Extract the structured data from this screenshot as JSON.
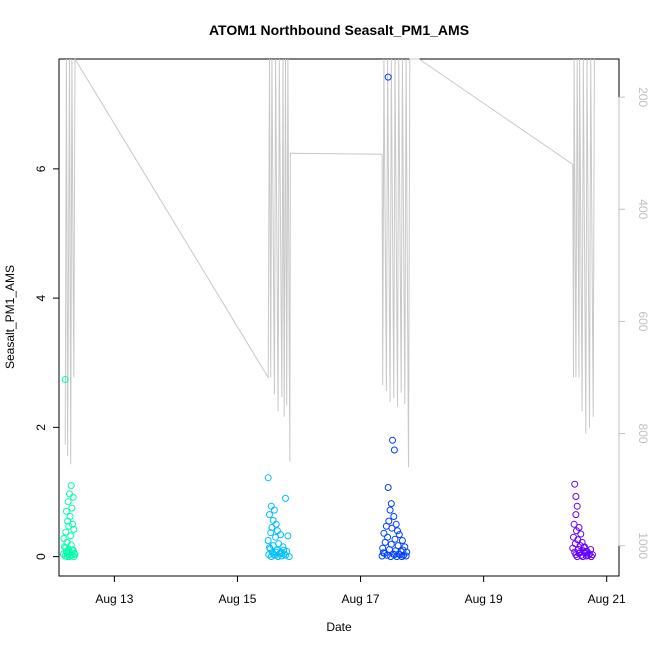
{
  "chart_data": {
    "type": "scatter",
    "title": "ATOM1 Northbound Seasalt_PM1_AMS",
    "xlabel": "Date",
    "ylabel": "Seasalt_PM1_AMS",
    "x_unit": "day of August 2016",
    "xlim": [
      12.1,
      21.2
    ],
    "ylim": [
      -0.3,
      7.7
    ],
    "x_ticks": [
      13,
      15,
      17,
      19,
      21
    ],
    "x_tick_labels": [
      "Aug 13",
      "Aug 15",
      "Aug 17",
      "Aug 19",
      "Aug 21"
    ],
    "y_ticks": [
      0,
      2,
      4,
      6
    ],
    "y_tick_labels": [
      "0",
      "2",
      "4",
      "6"
    ],
    "right_axis": {
      "label": "",
      "color": "#c0c0c0",
      "inverted": true,
      "ticks": [
        200,
        400,
        600,
        800,
        1000
      ],
      "tick_labels": [
        "200",
        "400",
        "600",
        "800",
        "1000"
      ],
      "lim": [
        1054,
        132
      ]
    },
    "color_scale": [
      "#00ffaa",
      "#00bfff",
      "#0040ff",
      "#6600ff"
    ],
    "series": [
      {
        "values": [
          [
            12.2,
            2.74
          ],
          [
            12.3,
            1.1
          ],
          [
            12.27,
            0.97
          ],
          [
            12.33,
            0.92
          ],
          [
            12.25,
            0.85
          ],
          [
            12.31,
            0.75
          ],
          [
            12.22,
            0.7
          ],
          [
            12.28,
            0.62
          ],
          [
            12.24,
            0.55
          ],
          [
            12.32,
            0.5
          ],
          [
            12.26,
            0.47
          ],
          [
            12.34,
            0.42
          ],
          [
            12.21,
            0.38
          ],
          [
            12.29,
            0.32
          ],
          [
            12.18,
            0.28
          ],
          [
            12.23,
            0.22
          ],
          [
            12.3,
            0.18
          ],
          [
            12.19,
            0.15
          ],
          [
            12.26,
            0.12
          ],
          [
            12.33,
            0.1
          ],
          [
            12.22,
            0.08
          ],
          [
            12.28,
            0.06
          ],
          [
            12.35,
            0.05
          ],
          [
            12.17,
            0.04
          ],
          [
            12.24,
            0.03
          ],
          [
            12.31,
            0.02
          ],
          [
            12.2,
            0.01
          ],
          [
            12.27,
            0.0
          ],
          [
            12.34,
            0.0
          ],
          [
            12.23,
            0.0
          ],
          [
            12.29,
            0.02
          ],
          [
            12.36,
            0.03
          ],
          [
            12.25,
            0.07
          ],
          [
            12.32,
            0.1
          ],
          [
            12.21,
            0.14
          ]
        ]
      },
      {
        "values": [
          [
            15.5,
            1.22
          ],
          [
            15.78,
            0.9
          ],
          [
            15.55,
            0.78
          ],
          [
            15.6,
            0.72
          ],
          [
            15.52,
            0.65
          ],
          [
            15.58,
            0.56
          ],
          [
            15.63,
            0.5
          ],
          [
            15.56,
            0.45
          ],
          [
            15.65,
            0.4
          ],
          [
            15.54,
            0.37
          ],
          [
            15.7,
            0.34
          ],
          [
            15.62,
            0.3
          ],
          [
            15.82,
            0.32
          ],
          [
            15.5,
            0.25
          ],
          [
            15.67,
            0.2
          ],
          [
            15.58,
            0.17
          ],
          [
            15.74,
            0.15
          ],
          [
            15.53,
            0.12
          ],
          [
            15.64,
            0.1
          ],
          [
            15.8,
            0.08
          ],
          [
            15.57,
            0.06
          ],
          [
            15.69,
            0.05
          ],
          [
            15.76,
            0.04
          ],
          [
            15.51,
            0.03
          ],
          [
            15.61,
            0.02
          ],
          [
            15.72,
            0.01
          ],
          [
            15.84,
            0.0
          ],
          [
            15.55,
            0.0
          ],
          [
            15.66,
            0.0
          ],
          [
            15.78,
            0.02
          ],
          [
            15.59,
            0.03
          ],
          [
            15.71,
            0.05
          ],
          [
            15.63,
            0.07
          ],
          [
            15.75,
            0.1
          ],
          [
            15.52,
            0.14
          ]
        ]
      },
      {
        "values": [
          [
            17.45,
            7.42
          ],
          [
            17.52,
            1.8
          ],
          [
            17.55,
            1.65
          ],
          [
            17.45,
            1.07
          ],
          [
            17.5,
            0.82
          ],
          [
            17.48,
            0.72
          ],
          [
            17.54,
            0.62
          ],
          [
            17.46,
            0.55
          ],
          [
            17.58,
            0.5
          ],
          [
            17.42,
            0.47
          ],
          [
            17.51,
            0.44
          ],
          [
            17.6,
            0.4
          ],
          [
            17.38,
            0.36
          ],
          [
            17.63,
            0.34
          ],
          [
            17.44,
            0.3
          ],
          [
            17.56,
            0.27
          ],
          [
            17.68,
            0.25
          ],
          [
            17.4,
            0.22
          ],
          [
            17.5,
            0.19
          ],
          [
            17.61,
            0.17
          ],
          [
            17.72,
            0.15
          ],
          [
            17.36,
            0.13
          ],
          [
            17.47,
            0.11
          ],
          [
            17.57,
            0.09
          ],
          [
            17.66,
            0.08
          ],
          [
            17.75,
            0.07
          ],
          [
            17.39,
            0.05
          ],
          [
            17.53,
            0.04
          ],
          [
            17.64,
            0.03
          ],
          [
            17.7,
            0.02
          ],
          [
            17.35,
            0.01
          ],
          [
            17.49,
            0.0
          ],
          [
            17.59,
            0.0
          ],
          [
            17.67,
            0.0
          ],
          [
            17.74,
            0.01
          ],
          [
            17.43,
            0.02
          ],
          [
            17.55,
            0.03
          ],
          [
            17.62,
            0.04
          ],
          [
            17.37,
            0.06
          ],
          [
            17.69,
            0.1
          ]
        ]
      },
      {
        "values": [
          [
            20.48,
            1.12
          ],
          [
            20.5,
            0.93
          ],
          [
            20.52,
            0.78
          ],
          [
            20.5,
            0.65
          ],
          [
            20.47,
            0.5
          ],
          [
            20.55,
            0.45
          ],
          [
            20.51,
            0.4
          ],
          [
            20.58,
            0.35
          ],
          [
            20.46,
            0.3
          ],
          [
            20.53,
            0.26
          ],
          [
            20.6,
            0.22
          ],
          [
            20.49,
            0.2
          ],
          [
            20.57,
            0.17
          ],
          [
            20.64,
            0.15
          ],
          [
            20.45,
            0.13
          ],
          [
            20.54,
            0.11
          ],
          [
            20.62,
            0.09
          ],
          [
            20.68,
            0.08
          ],
          [
            20.48,
            0.07
          ],
          [
            20.56,
            0.06
          ],
          [
            20.65,
            0.05
          ],
          [
            20.72,
            0.04
          ],
          [
            20.5,
            0.03
          ],
          [
            20.59,
            0.02
          ],
          [
            20.67,
            0.01
          ],
          [
            20.75,
            0.0
          ],
          [
            20.52,
            0.0
          ],
          [
            20.61,
            0.0
          ],
          [
            20.7,
            0.02
          ],
          [
            20.77,
            0.03
          ],
          [
            20.55,
            0.05
          ],
          [
            20.66,
            0.08
          ],
          [
            20.74,
            0.11
          ],
          [
            20.63,
            0.14
          ]
        ]
      }
    ],
    "right_axis_line": {
      "color": "#c8c8c8",
      "values": [
        [
          12.2,
          820
        ],
        [
          12.22,
          132
        ],
        [
          12.24,
          840
        ],
        [
          12.27,
          132
        ],
        [
          12.29,
          855
        ],
        [
          12.31,
          132
        ],
        [
          12.34,
          700
        ],
        [
          12.36,
          132
        ],
        [
          15.5,
          700
        ],
        [
          15.52,
          132
        ],
        [
          15.54,
          700
        ],
        [
          15.56,
          132
        ],
        [
          15.6,
          730
        ],
        [
          15.62,
          132
        ],
        [
          15.66,
          760
        ],
        [
          15.68,
          132
        ],
        [
          15.72,
          735
        ],
        [
          15.74,
          132
        ],
        [
          15.76,
          770
        ],
        [
          15.78,
          132
        ],
        [
          15.8,
          750
        ],
        [
          15.82,
          132
        ],
        [
          15.85,
          850
        ],
        [
          15.86,
          300
        ],
        [
          17.35,
          302
        ],
        [
          17.36,
          714
        ],
        [
          17.38,
          132
        ],
        [
          17.42,
          724
        ],
        [
          17.44,
          132
        ],
        [
          17.48,
          744
        ],
        [
          17.5,
          132
        ],
        [
          17.54,
          737
        ],
        [
          17.56,
          132
        ],
        [
          17.6,
          752
        ],
        [
          17.62,
          132
        ],
        [
          17.66,
          727
        ],
        [
          17.68,
          132
        ],
        [
          17.72,
          747
        ],
        [
          17.74,
          132
        ],
        [
          17.78,
          860
        ],
        [
          17.8,
          132
        ],
        [
          17.95,
          132
        ],
        [
          20.45,
          320
        ],
        [
          20.46,
          700
        ],
        [
          20.47,
          132
        ],
        [
          20.5,
          700
        ],
        [
          20.52,
          132
        ],
        [
          20.55,
          700
        ],
        [
          20.56,
          132
        ],
        [
          20.6,
          760
        ],
        [
          20.62,
          132
        ],
        [
          20.66,
          800
        ],
        [
          20.68,
          132
        ],
        [
          20.72,
          790
        ],
        [
          20.74,
          132
        ],
        [
          20.78,
          770
        ],
        [
          20.8,
          132
        ]
      ]
    }
  }
}
